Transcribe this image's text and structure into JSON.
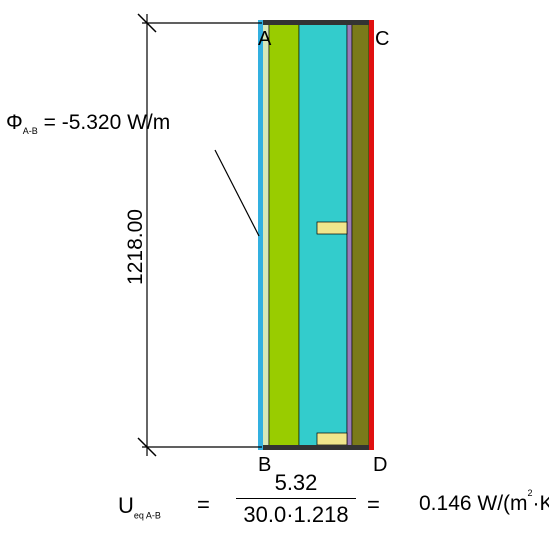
{
  "points": {
    "a": "A",
    "b": "B",
    "c": "C",
    "d": "D"
  },
  "dimension": {
    "height_label": "1218.00"
  },
  "flux": {
    "symbol": "Φ",
    "subscript": "A-B",
    "value_text": "= -5.320 W/m"
  },
  "equation": {
    "lhs_symbol": "U",
    "lhs_subscript": "eq A-B",
    "equals_1": "=",
    "numerator": "5.32",
    "denominator": "30.0·1.218",
    "equals_2": "=",
    "result_value": "0.146 W/(m",
    "result_exp": "2",
    "result_tail": "·K)"
  },
  "colors": {
    "interior_surface": "#33b0e0",
    "exterior_surface": "#e01010",
    "layer_green": "#99cc00",
    "layer_cyan": "#33cccc",
    "layer_purple": "#9a7bb8",
    "layer_olive": "#7a7a1a",
    "insert_yellow": "#f0e68c",
    "frame_dark": "#333333"
  }
}
